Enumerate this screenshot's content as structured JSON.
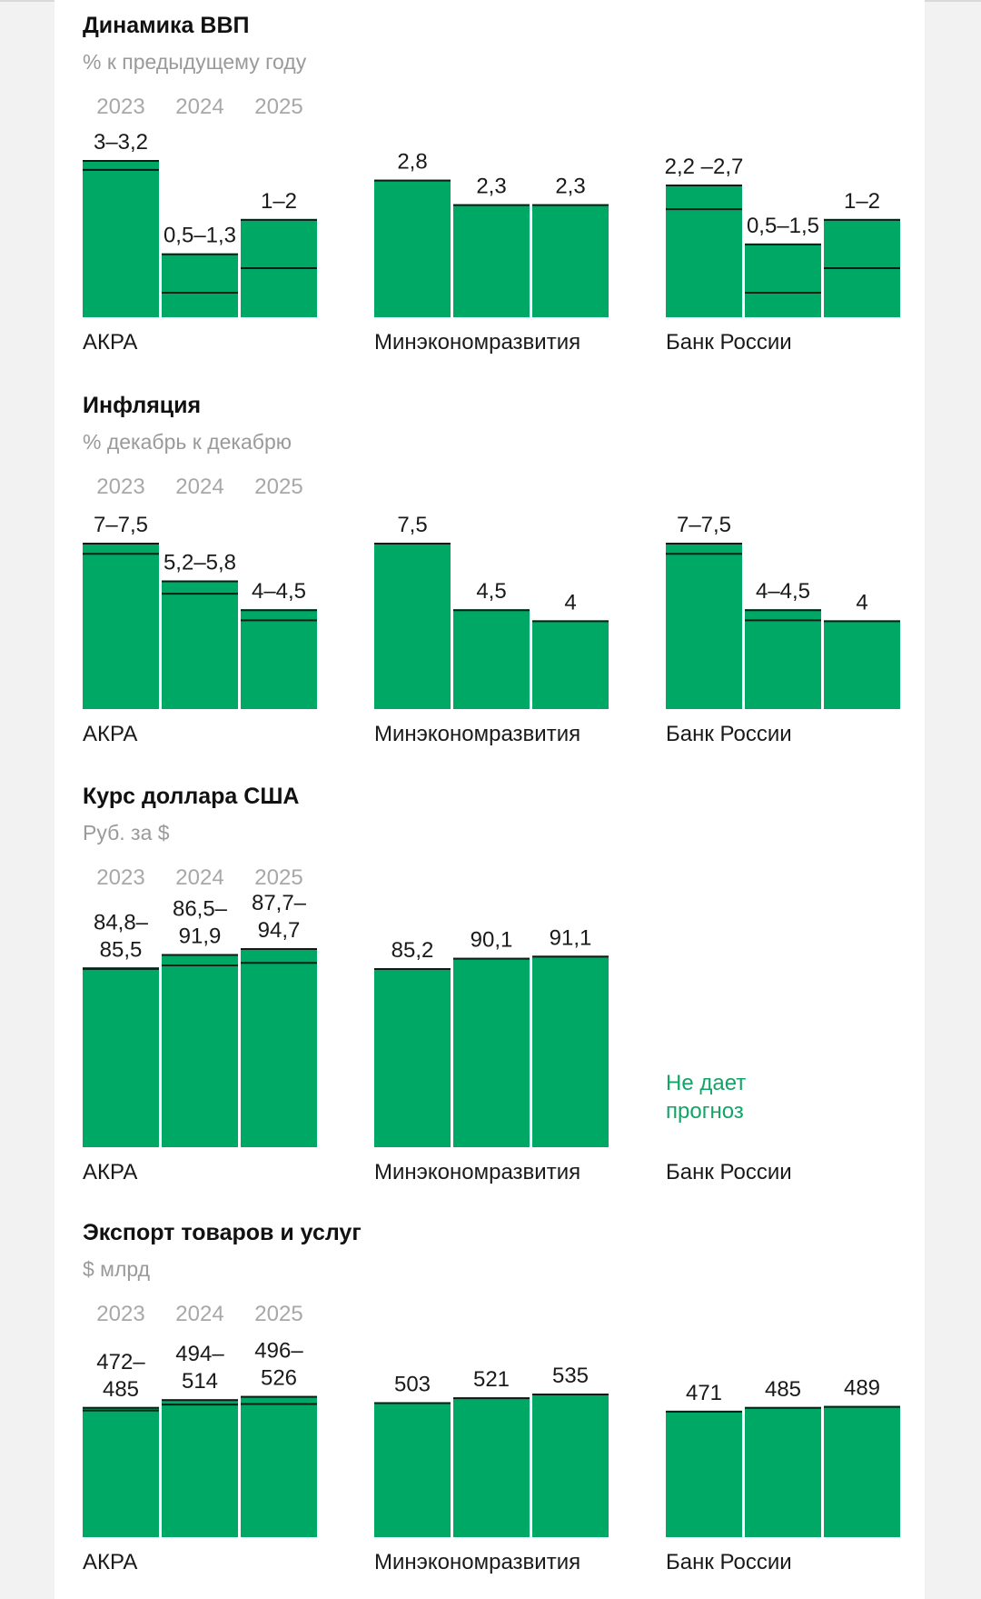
{
  "colors": {
    "bar": "#00a865",
    "range_line": "#0b1d14",
    "note": "#12a567",
    "muted": "#9a9a9a"
  },
  "chart_data": [
    {
      "type": "bar",
      "title": "Динамика ВВП",
      "subtitle": "% к предыдущему году",
      "categories": [
        "2023",
        "2024",
        "2025"
      ],
      "groups": [
        {
          "name": "АКРА",
          "values": [
            [
              3,
              3.2
            ],
            [
              0.5,
              1.3
            ],
            [
              1,
              2
            ]
          ],
          "labels": [
            [
              "3–3,2"
            ],
            [
              "0,5–1,3"
            ],
            [
              "1–2"
            ]
          ]
        },
        {
          "name": "Минэкономразвития",
          "values": [
            2.8,
            2.3,
            2.3
          ],
          "labels": [
            [
              "2,8"
            ],
            [
              "2,3"
            ],
            [
              "2,3"
            ]
          ]
        },
        {
          "name": "Банк России",
          "values": [
            [
              2.2,
              2.7
            ],
            [
              0.5,
              1.5
            ],
            [
              1,
              2
            ]
          ],
          "labels": [
            [
              "2,2 –2,7"
            ],
            [
              "0,5–1,5"
            ],
            [
              "1–2"
            ]
          ]
        }
      ]
    },
    {
      "type": "bar",
      "title": "Инфляция",
      "subtitle": "% декабрь к декабрю",
      "categories": [
        "2023",
        "2024",
        "2025"
      ],
      "groups": [
        {
          "name": "АКРА",
          "values": [
            [
              7,
              7.5
            ],
            [
              5.2,
              5.8
            ],
            [
              4,
              4.5
            ]
          ],
          "labels": [
            [
              "7–7,5"
            ],
            [
              "5,2–5,8"
            ],
            [
              "4–4,5"
            ]
          ]
        },
        {
          "name": "Минэкономразвития",
          "values": [
            7.5,
            4.5,
            4
          ],
          "labels": [
            [
              "7,5"
            ],
            [
              "4,5"
            ],
            [
              "4"
            ]
          ]
        },
        {
          "name": "Банк России",
          "values": [
            [
              7,
              7.5
            ],
            [
              4,
              4.5
            ],
            4
          ],
          "labels": [
            [
              "7–7,5"
            ],
            [
              "4–4,5"
            ],
            [
              "4"
            ]
          ]
        }
      ]
    },
    {
      "type": "bar",
      "title": "Курс доллара США",
      "subtitle": "Руб. за $",
      "categories": [
        "2023",
        "2024",
        "2025"
      ],
      "groups": [
        {
          "name": "АКРА",
          "values": [
            [
              84.8,
              85.5
            ],
            [
              86.5,
              91.9
            ],
            [
              87.7,
              94.7
            ]
          ],
          "labels": [
            [
              "84,8–",
              "85,5"
            ],
            [
              "86,5–",
              "91,9"
            ],
            [
              "87,7–",
              "94,7"
            ]
          ]
        },
        {
          "name": "Минэкономразвития",
          "values": [
            85.2,
            90.1,
            91.1
          ],
          "labels": [
            [
              "85,2"
            ],
            [
              "90,1"
            ],
            [
              "91,1"
            ]
          ]
        },
        {
          "name": "Банк России",
          "values": [
            null,
            null,
            null
          ],
          "labels": [
            [],
            [],
            []
          ],
          "note": [
            "Не дает",
            "прогноз"
          ]
        }
      ]
    },
    {
      "type": "bar",
      "title": "Экспорт товаров и услуг",
      "subtitle": "$ млрд",
      "categories": [
        "2023",
        "2024",
        "2025"
      ],
      "groups": [
        {
          "name": "АКРА",
          "values": [
            [
              472,
              485
            ],
            [
              494,
              514
            ],
            [
              496,
              526
            ]
          ],
          "labels": [
            [
              "472–",
              "485"
            ],
            [
              "494–",
              "514"
            ],
            [
              "496–",
              "526"
            ]
          ]
        },
        {
          "name": "Минэкономразвития",
          "values": [
            503,
            521,
            535
          ],
          "labels": [
            [
              "503"
            ],
            [
              "521"
            ],
            [
              "535"
            ]
          ]
        },
        {
          "name": "Банк России",
          "values": [
            471,
            485,
            489
          ],
          "labels": [
            [
              "471"
            ],
            [
              "485"
            ],
            [
              "489"
            ]
          ]
        }
      ]
    }
  ]
}
